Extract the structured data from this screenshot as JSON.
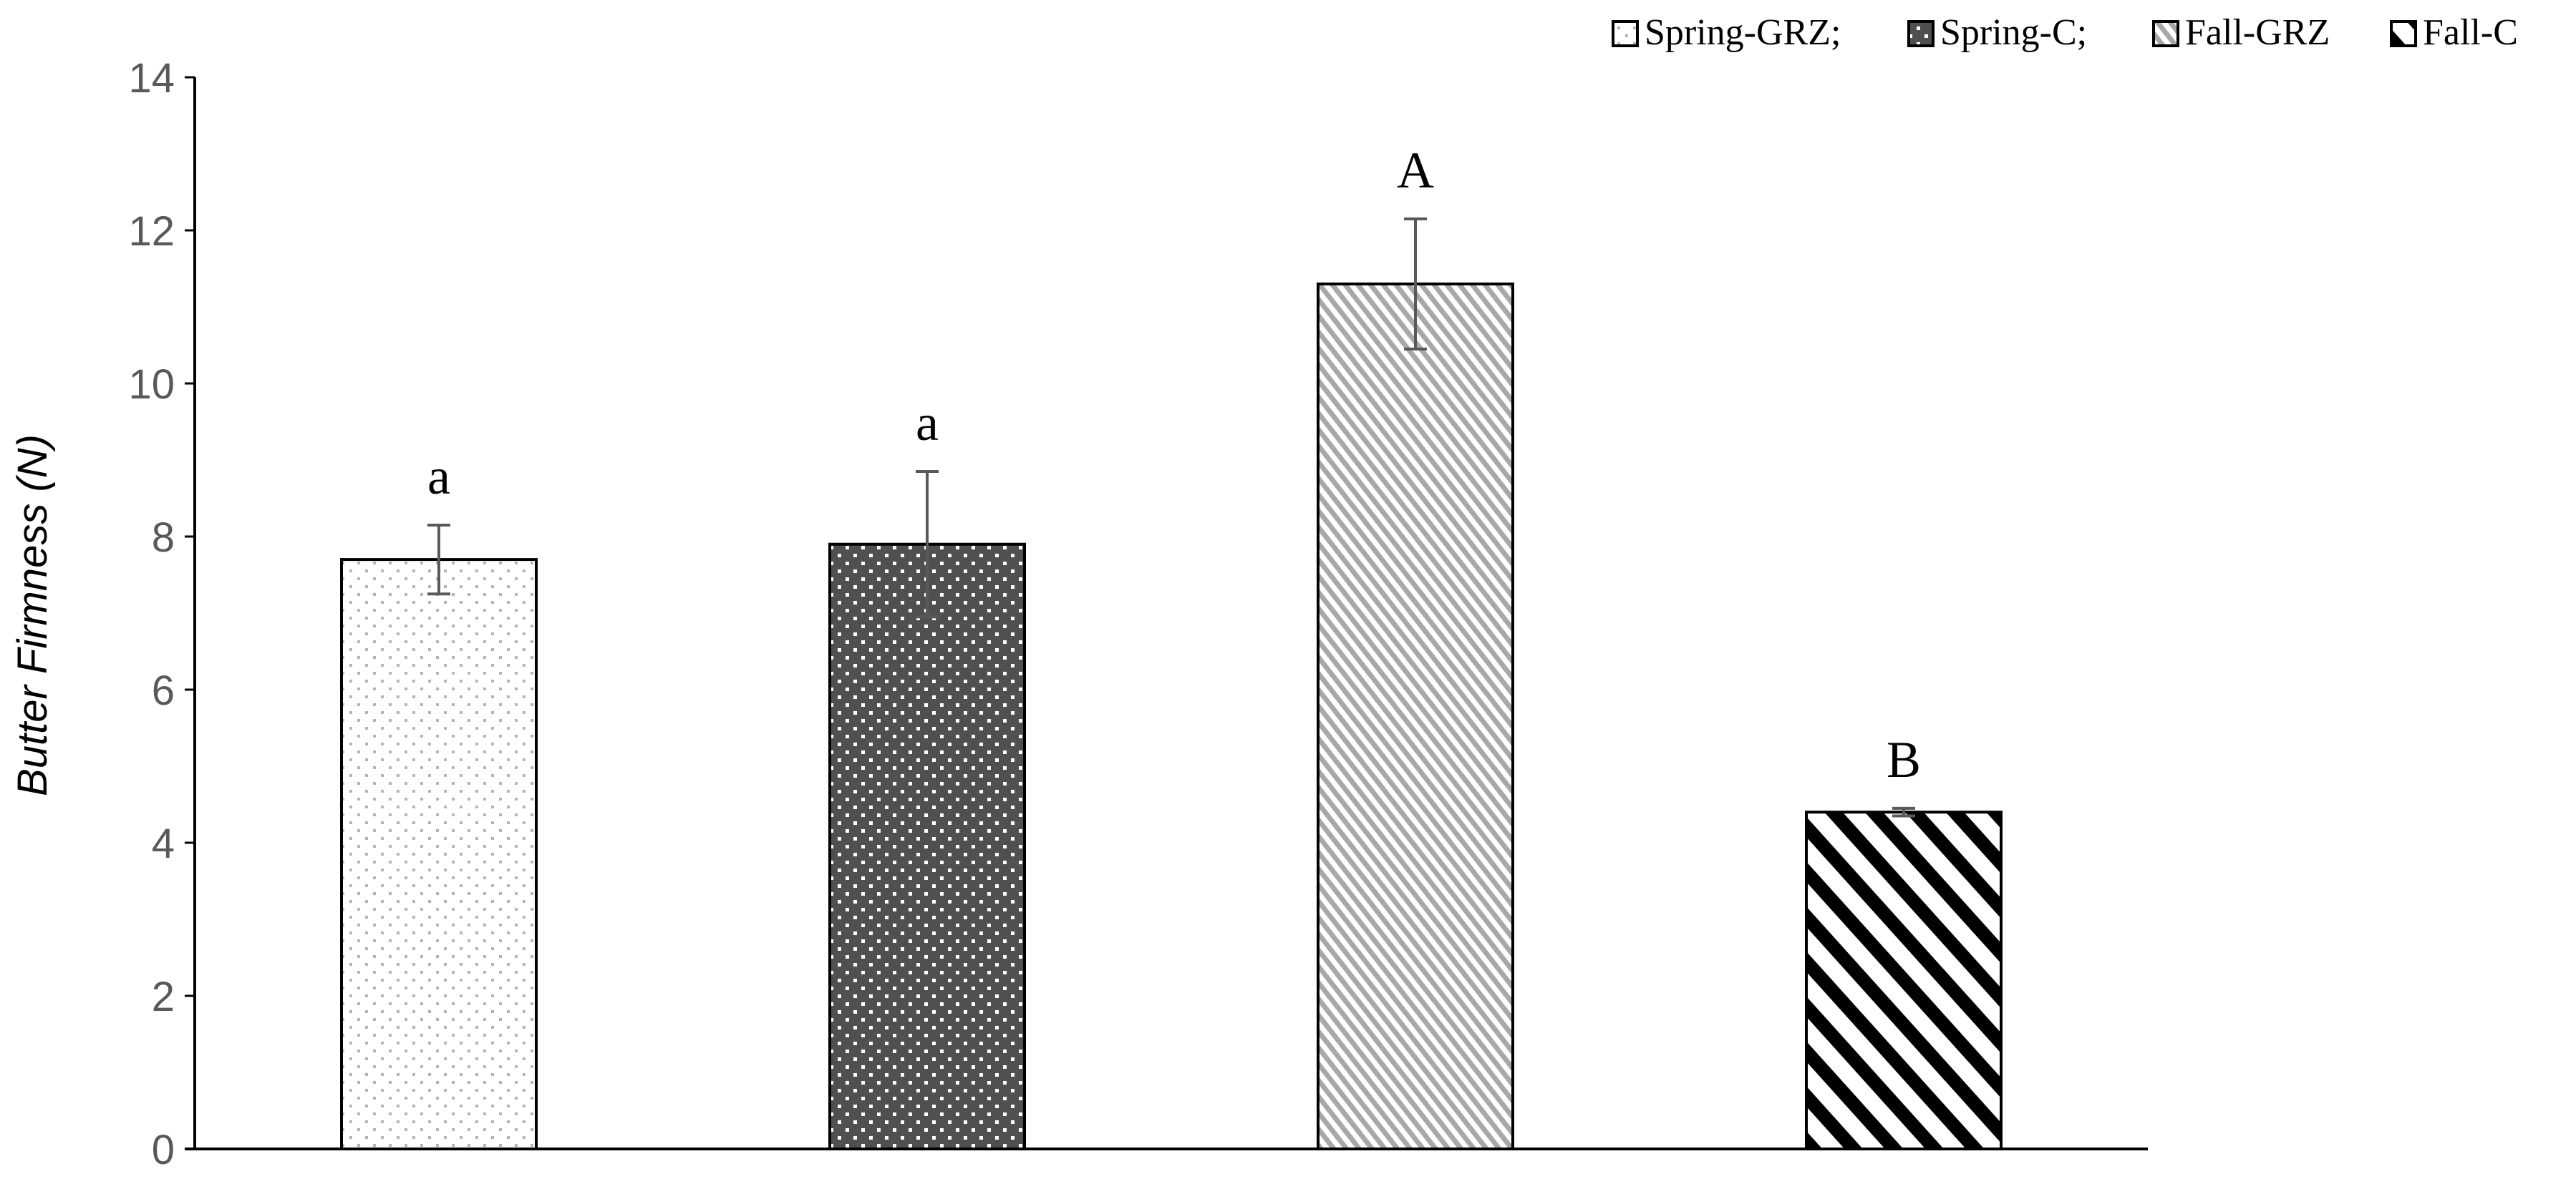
{
  "chart_data": {
    "type": "bar",
    "title": "",
    "xlabel": "",
    "ylabel": "Butter Firmness (N)",
    "ylim": [
      0,
      14
    ],
    "yticks": [
      0,
      2,
      4,
      6,
      8,
      10,
      12,
      14
    ],
    "grid": false,
    "legend_placement": "top-right",
    "categories": [
      "Spring-GRZ",
      "Spring-C",
      "Fall-GRZ",
      "Fall-C"
    ],
    "series": [
      {
        "values": [
          7.7,
          7.9,
          11.3,
          4.4
        ],
        "error": [
          0.45,
          0.95,
          0.85,
          0.05
        ],
        "annotations": [
          "a",
          "a",
          "A",
          "B"
        ]
      }
    ],
    "legend": [
      {
        "label": "Spring-GRZ;",
        "pattern": "sparse-dots"
      },
      {
        "label": "Spring-C;",
        "pattern": "dark-dots"
      },
      {
        "label": "Fall-GRZ",
        "pattern": "fine-diagonal"
      },
      {
        "label": "Fall-C",
        "pattern": "wide-diagonal"
      }
    ],
    "colors": {
      "axis": "#000000",
      "tick_label": "#595959",
      "error_bar": "#595959",
      "bar_outline": "#000000",
      "spring_c_fill": "#505050",
      "fall_grz_stripe": "#a8a8a8",
      "spring_grz_dot": "#b4b4b4"
    }
  }
}
